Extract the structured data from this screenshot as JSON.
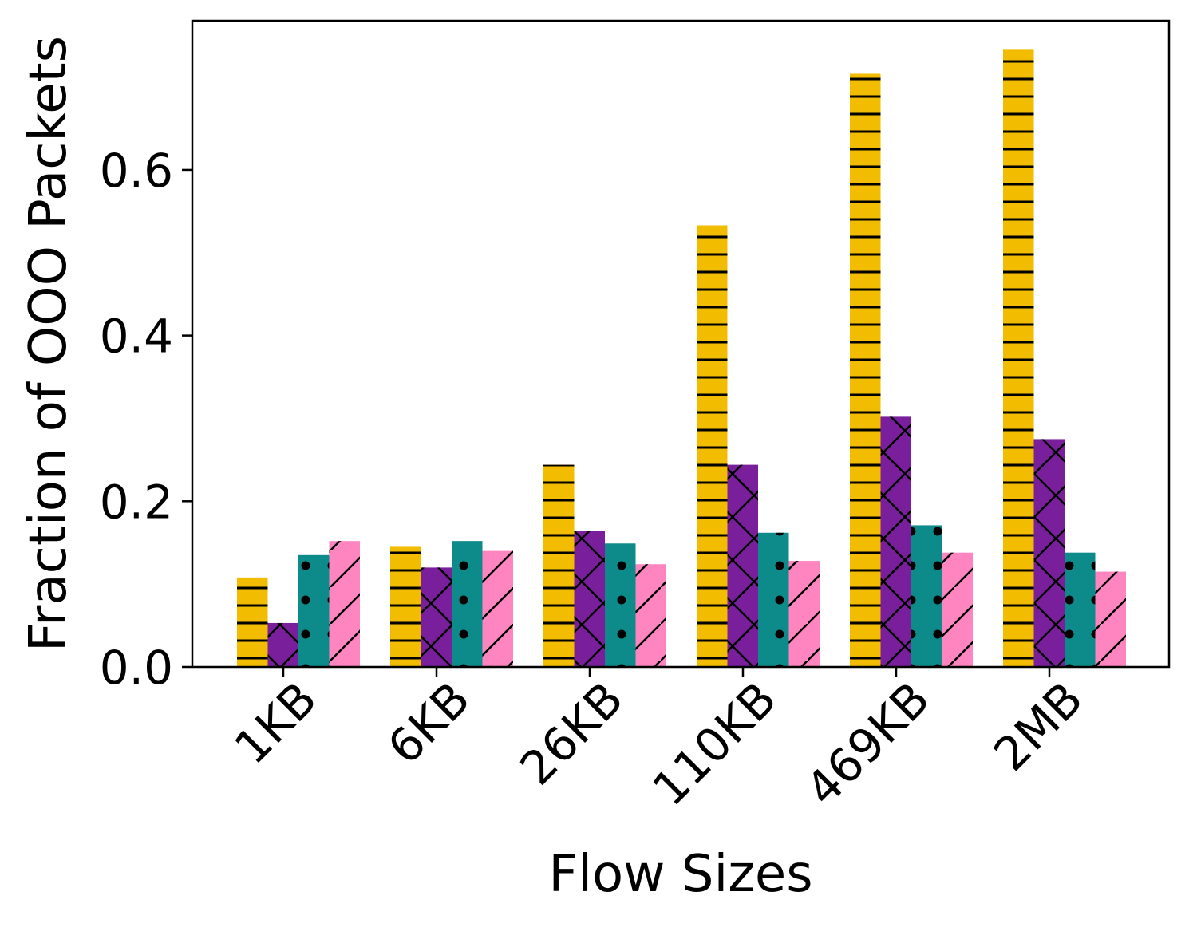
{
  "chart_data": {
    "type": "bar",
    "xlabel": "Flow Sizes",
    "ylabel": "Fraction of OOO Packets",
    "categories": [
      "1KB",
      "6KB",
      "26KB",
      "110KB",
      "469KB",
      "2MB"
    ],
    "ylim": [
      0,
      0.78
    ],
    "yticks": [
      "0.0",
      "0.2",
      "0.4",
      "0.6"
    ],
    "grid": false,
    "legend": "none",
    "series": [
      {
        "color": "#f2bd00",
        "hatch": "horizontal-lines",
        "values": [
          0.108,
          0.145,
          0.244,
          0.533,
          0.716,
          0.745
        ]
      },
      {
        "color": "#7a1f9c",
        "hatch": "crosshatch",
        "values": [
          0.053,
          0.12,
          0.164,
          0.244,
          0.302,
          0.275
        ]
      },
      {
        "color": "#0d8a8a",
        "hatch": "dots",
        "values": [
          0.135,
          0.152,
          0.149,
          0.162,
          0.171,
          0.138
        ]
      },
      {
        "color": "#ff85c0",
        "hatch": "diagonal",
        "values": [
          0.152,
          0.14,
          0.124,
          0.128,
          0.138,
          0.115
        ]
      }
    ]
  }
}
